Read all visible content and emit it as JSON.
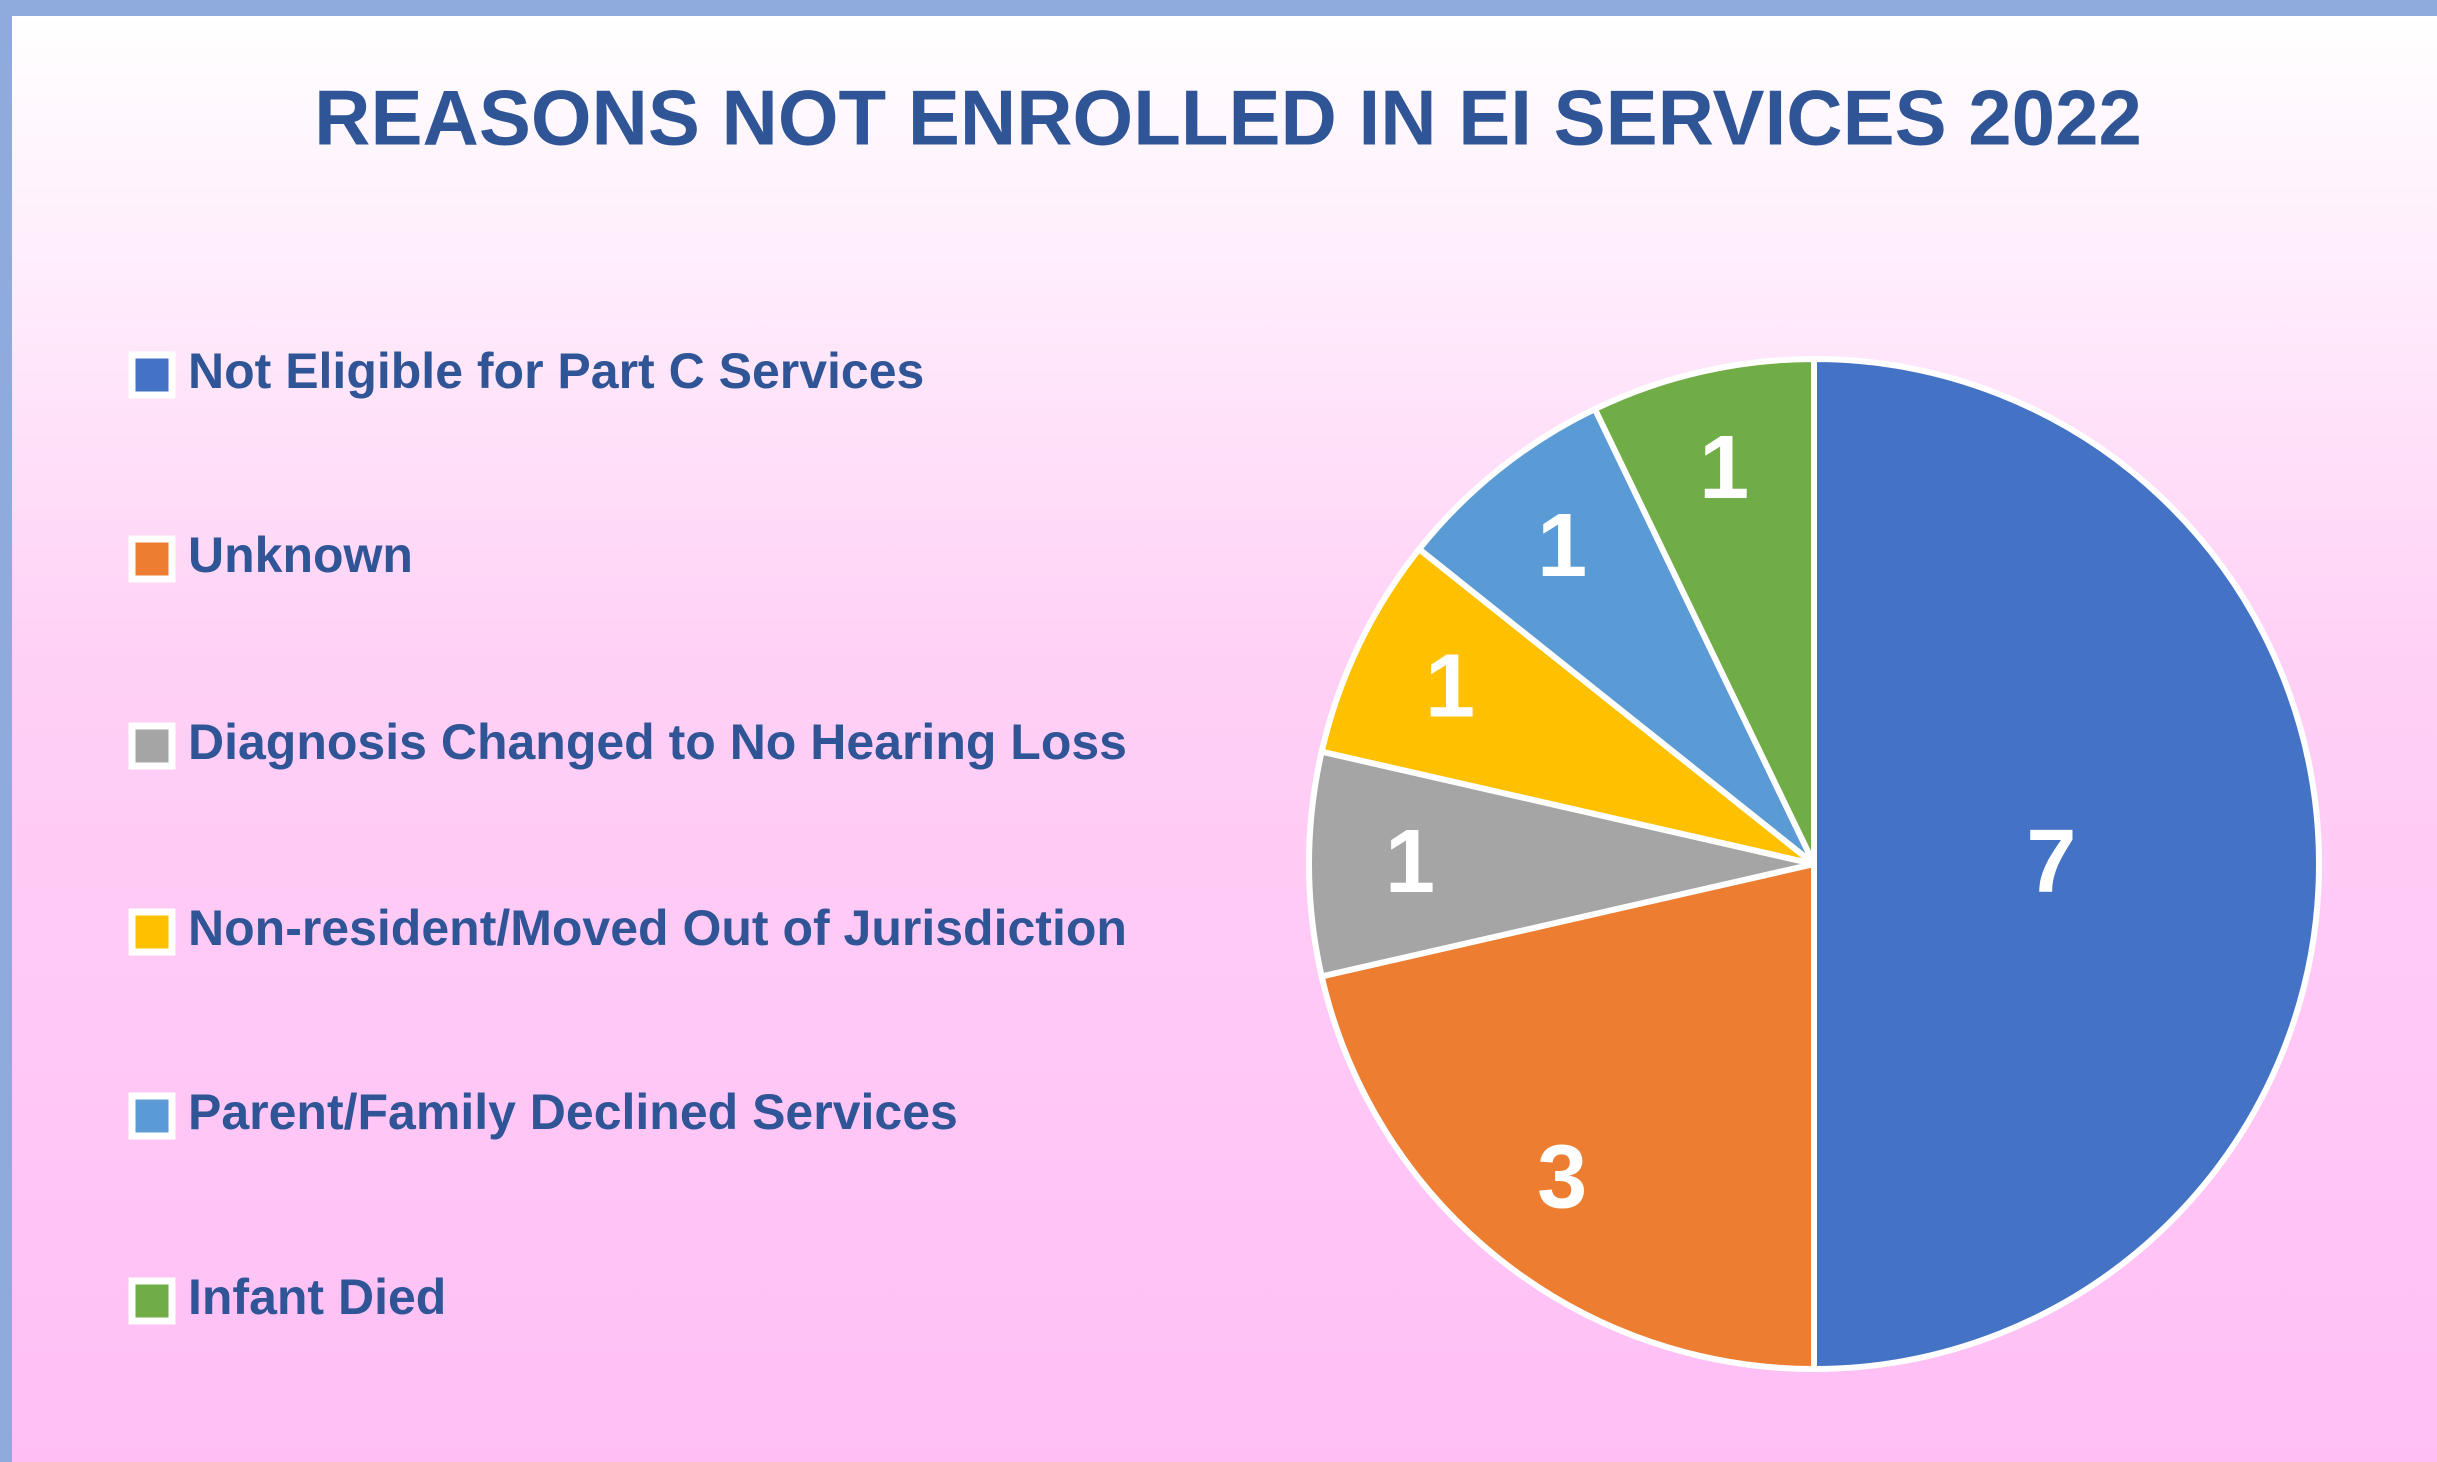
{
  "chart_data": {
    "type": "pie",
    "title": "REASONS NOT ENROLLED IN EI SERVICES 2022",
    "categories": [
      "Not Eligible for Part C Services",
      "Unknown",
      "Diagnosis Changed to No Hearing Loss",
      "Non-resident/Moved Out of Jurisdiction",
      "Parent/Family Declined Services",
      "Infant Died"
    ],
    "values": [
      7,
      3,
      1,
      1,
      1,
      1
    ],
    "colors": [
      "#4472c4",
      "#ed7d31",
      "#a5a5a5",
      "#ffc000",
      "#5b9bd5",
      "#70ad47"
    ],
    "legend": "left"
  }
}
